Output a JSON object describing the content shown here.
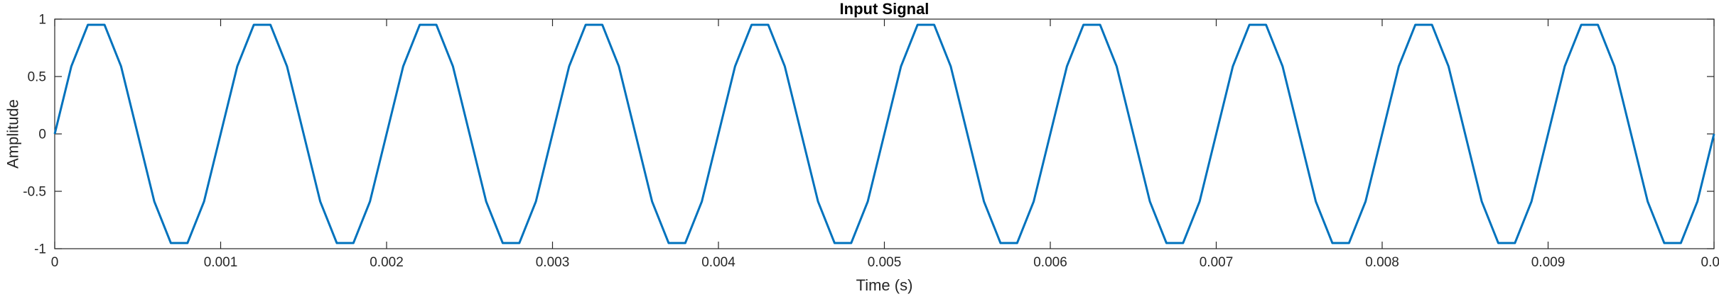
{
  "chart_data": {
    "type": "line",
    "title": "Input Signal",
    "xlabel": "Time (s)",
    "ylabel": "Amplitude",
    "xlim": [
      0,
      0.01
    ],
    "ylim": [
      -1,
      1
    ],
    "xticks": [
      0,
      0.001,
      0.002,
      0.003,
      0.004,
      0.005,
      0.006,
      0.007,
      0.008,
      0.009,
      0.01
    ],
    "xtick_labels": [
      "0",
      "0.001",
      "0.002",
      "0.003",
      "0.004",
      "0.005",
      "0.006",
      "0.007",
      "0.008",
      "0.009",
      "0.01"
    ],
    "yticks": [
      -1,
      -0.5,
      0,
      0.5,
      1
    ],
    "ytick_labels": [
      "-1",
      "-0.5",
      "0",
      "0.5",
      "1"
    ],
    "grid": false,
    "line_color": "#0072BD",
    "series": [
      {
        "x": [
          0,
          0.0001,
          0.0002,
          0.0003,
          0.0004,
          0.0005,
          0.0006,
          0.0007,
          0.0008,
          0.0009,
          0.001,
          0.0011,
          0.0012,
          0.0013,
          0.0014,
          0.0015,
          0.0016,
          0.0017,
          0.0018,
          0.0019,
          0.002,
          0.0021,
          0.0022,
          0.0023,
          0.0024,
          0.0025,
          0.0026,
          0.0027,
          0.0028,
          0.0029,
          0.003,
          0.0031,
          0.0032,
          0.0033,
          0.0034,
          0.0035,
          0.0036,
          0.0037,
          0.0038,
          0.0039,
          0.004,
          0.0041,
          0.0042,
          0.0043,
          0.0044,
          0.0045,
          0.0046,
          0.0047,
          0.0048,
          0.0049,
          0.005,
          0.0051,
          0.0052,
          0.0053,
          0.0054,
          0.0055,
          0.0056,
          0.0057,
          0.0058,
          0.0059,
          0.006,
          0.0061,
          0.0062,
          0.0063,
          0.0064,
          0.0065,
          0.0066,
          0.0067,
          0.0068,
          0.0069,
          0.007,
          0.0071,
          0.0072,
          0.0073,
          0.0074,
          0.0075,
          0.0076,
          0.0077,
          0.0078,
          0.0079,
          0.008,
          0.0081,
          0.0082,
          0.0083,
          0.0084,
          0.0085,
          0.0086,
          0.0087,
          0.0088,
          0.0089,
          0.009,
          0.0091,
          0.0092,
          0.0093,
          0.0094,
          0.0095,
          0.0096,
          0.0097,
          0.0098,
          0.0099,
          0.01
        ],
        "y": [
          0,
          0.588,
          0.951,
          0.951,
          0.588,
          0,
          -0.588,
          -0.951,
          -0.951,
          -0.588,
          0,
          0.588,
          0.951,
          0.951,
          0.588,
          0,
          -0.588,
          -0.951,
          -0.951,
          -0.588,
          0,
          0.588,
          0.951,
          0.951,
          0.588,
          0,
          -0.588,
          -0.951,
          -0.951,
          -0.588,
          0,
          0.588,
          0.951,
          0.951,
          0.588,
          0,
          -0.588,
          -0.951,
          -0.951,
          -0.588,
          0,
          0.588,
          0.951,
          0.951,
          0.588,
          0,
          -0.588,
          -0.951,
          -0.951,
          -0.588,
          0,
          0.588,
          0.951,
          0.951,
          0.588,
          0,
          -0.588,
          -0.951,
          -0.951,
          -0.588,
          0,
          0.588,
          0.951,
          0.951,
          0.588,
          0,
          -0.588,
          -0.951,
          -0.951,
          -0.588,
          0,
          0.588,
          0.951,
          0.951,
          0.588,
          0,
          -0.588,
          -0.951,
          -0.951,
          -0.588,
          0,
          0.588,
          0.951,
          0.951,
          0.588,
          0,
          -0.588,
          -0.951,
          -0.951,
          -0.588,
          0,
          0.588,
          0.951,
          0.951,
          0.588,
          0,
          -0.588,
          -0.951,
          -0.951,
          -0.588,
          0
        ]
      }
    ]
  }
}
